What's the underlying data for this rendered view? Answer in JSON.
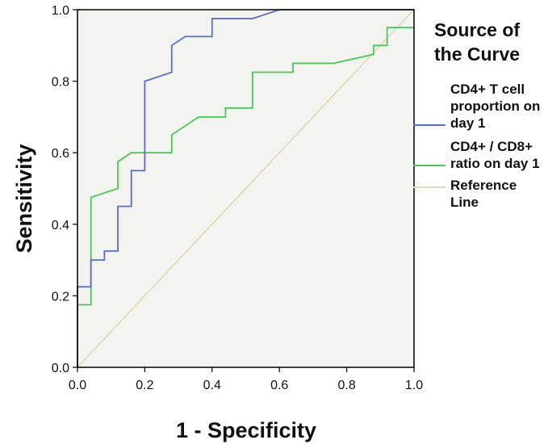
{
  "chart_data": {
    "type": "line",
    "title": "",
    "xlabel": "1 - Specificity",
    "ylabel": "Sensitivity",
    "xlim": [
      0.0,
      1.0
    ],
    "ylim": [
      0.0,
      1.0
    ],
    "x_ticks": [
      "0.0",
      "0.2",
      "0.4",
      "0.6",
      "0.8",
      "1.0"
    ],
    "y_ticks": [
      "0.0",
      "0.2",
      "0.4",
      "0.6",
      "0.8",
      "1.0"
    ],
    "grid": false,
    "plot_background": "#f3f3f0",
    "legend": {
      "title": "Source of the Curve",
      "position": "right"
    },
    "series": [
      {
        "name": "CD4+ T cell proportion on day 1",
        "color": "#5a6fc0",
        "points": [
          [
            0.0,
            0.0
          ],
          [
            0.0,
            0.225
          ],
          [
            0.04,
            0.225
          ],
          [
            0.04,
            0.3
          ],
          [
            0.08,
            0.3
          ],
          [
            0.08,
            0.325
          ],
          [
            0.12,
            0.325
          ],
          [
            0.12,
            0.45
          ],
          [
            0.16,
            0.45
          ],
          [
            0.16,
            0.55
          ],
          [
            0.2,
            0.55
          ],
          [
            0.2,
            0.8
          ],
          [
            0.28,
            0.825
          ],
          [
            0.28,
            0.9
          ],
          [
            0.32,
            0.925
          ],
          [
            0.4,
            0.925
          ],
          [
            0.4,
            0.975
          ],
          [
            0.52,
            0.975
          ],
          [
            0.6,
            1.0
          ],
          [
            1.0,
            1.0
          ]
        ]
      },
      {
        "name": "CD4+ / CD8+ ratio on day 1",
        "color": "#4fc35c",
        "points": [
          [
            0.0,
            0.0
          ],
          [
            0.0,
            0.175
          ],
          [
            0.04,
            0.175
          ],
          [
            0.04,
            0.475
          ],
          [
            0.12,
            0.5
          ],
          [
            0.12,
            0.575
          ],
          [
            0.16,
            0.6
          ],
          [
            0.28,
            0.6
          ],
          [
            0.28,
            0.65
          ],
          [
            0.36,
            0.7
          ],
          [
            0.44,
            0.7
          ],
          [
            0.44,
            0.725
          ],
          [
            0.52,
            0.725
          ],
          [
            0.52,
            0.825
          ],
          [
            0.64,
            0.825
          ],
          [
            0.64,
            0.85
          ],
          [
            0.76,
            0.85
          ],
          [
            0.88,
            0.875
          ],
          [
            0.88,
            0.9
          ],
          [
            0.92,
            0.9
          ],
          [
            0.92,
            0.95
          ],
          [
            1.0,
            0.95
          ]
        ]
      },
      {
        "name": "Reference Line",
        "color": "#dcd9bf",
        "points": [
          [
            0.0,
            0.0
          ],
          [
            1.0,
            1.0
          ]
        ]
      }
    ]
  }
}
